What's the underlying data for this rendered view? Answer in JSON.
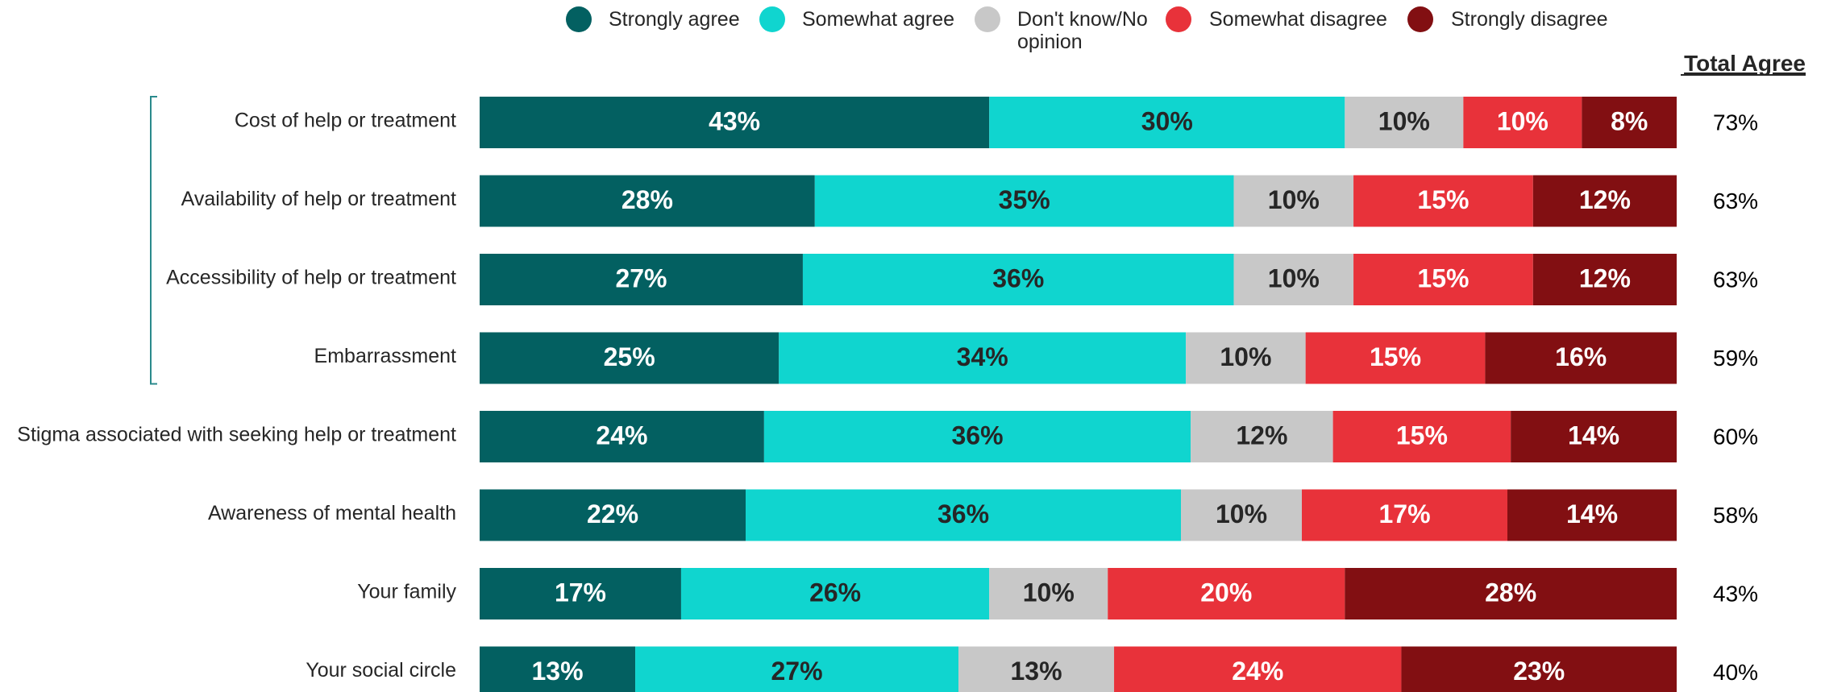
{
  "chart_data": {
    "type": "bar",
    "orientation": "horizontal",
    "stacked": true,
    "percent_suffix": "%",
    "categories": [
      "Cost of help or treatment",
      "Availability of help or treatment",
      "Accessibility of help or treatment",
      "Embarrassment",
      "Stigma associated with seeking help or treatment",
      "Awareness of mental health",
      "Your family",
      "Your social circle"
    ],
    "series": [
      {
        "name": "Strongly agree",
        "color": "#036061",
        "label_color": "#ffffff",
        "values": [
          43,
          28,
          27,
          25,
          24,
          22,
          17,
          13
        ]
      },
      {
        "name": "Somewhat agree",
        "color": "#10d5cf",
        "label_color": "#262626",
        "values": [
          30,
          35,
          36,
          34,
          36,
          36,
          26,
          27
        ]
      },
      {
        "name": "Don't know/No opinion",
        "color": "#c8c8c8",
        "label_color": "#262626",
        "values": [
          10,
          10,
          10,
          10,
          12,
          10,
          10,
          13
        ]
      },
      {
        "name": "Somewhat disagree",
        "color": "#e8323a",
        "label_color": "#ffffff",
        "values": [
          10,
          15,
          15,
          15,
          15,
          17,
          20,
          24
        ]
      },
      {
        "name": "Strongly disagree",
        "color": "#820f12",
        "label_color": "#ffffff",
        "values": [
          8,
          12,
          12,
          16,
          14,
          14,
          28,
          23
        ]
      }
    ],
    "total_agree": {
      "header": "Total Agree",
      "values": [
        "73%",
        "63%",
        "63%",
        "59%",
        "60%",
        "58%",
        "43%",
        "40%"
      ]
    },
    "legend": {
      "position": "top"
    },
    "grid": false,
    "bracket_color": "#2a8a8c"
  }
}
